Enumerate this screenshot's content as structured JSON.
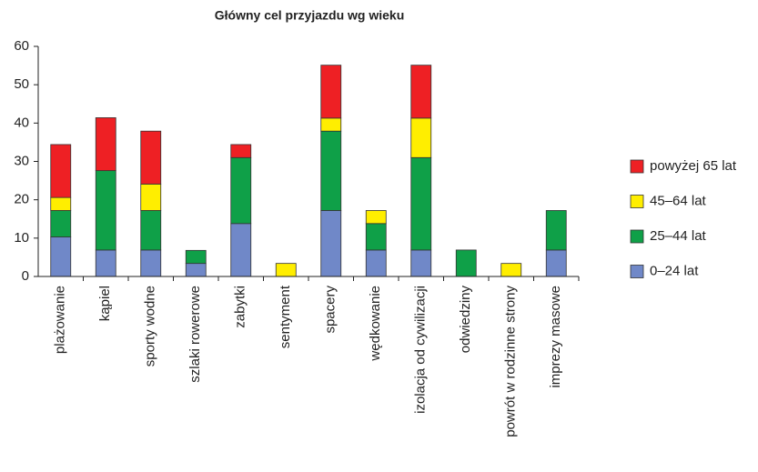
{
  "chart_data": {
    "type": "stacked_bar",
    "title": "Główny cel przyjazdu wg wieku",
    "categories": [
      "plażowanie",
      "kąpiel",
      "sporty wodne",
      "szlaki rowerowe",
      "zabytki",
      "sentyment",
      "spacery",
      "wędkowanie",
      "izolacja od cywilizacji",
      "odwiedziny",
      "powrót w rodzinne strony",
      "imprezy masowe"
    ],
    "series": [
      {
        "name": "0–24 lat",
        "color": "#7088c8",
        "values": [
          10.3,
          6.9,
          6.9,
          3.4,
          13.8,
          0,
          17.2,
          6.9,
          6.9,
          0,
          0,
          6.9
        ]
      },
      {
        "name": "25–44 lat",
        "color": "#0fa048",
        "values": [
          6.9,
          20.7,
          10.3,
          3.4,
          17.2,
          0,
          20.7,
          6.9,
          24.1,
          6.9,
          0,
          10.3
        ]
      },
      {
        "name": "45–64 lat",
        "color": "#ffee00",
        "values": [
          3.4,
          0,
          6.9,
          0,
          0,
          3.4,
          3.4,
          3.4,
          10.3,
          0,
          3.4,
          0
        ]
      },
      {
        "name": "powyżej 65 lat",
        "color": "#ee2024",
        "values": [
          13.8,
          13.8,
          13.8,
          0,
          3.4,
          0,
          13.8,
          0,
          13.8,
          0,
          0,
          0
        ]
      }
    ],
    "ylim": [
      0,
      60
    ],
    "yticks": [
      0,
      10,
      20,
      30,
      40,
      50,
      60
    ],
    "grid": false,
    "legend": "right"
  }
}
